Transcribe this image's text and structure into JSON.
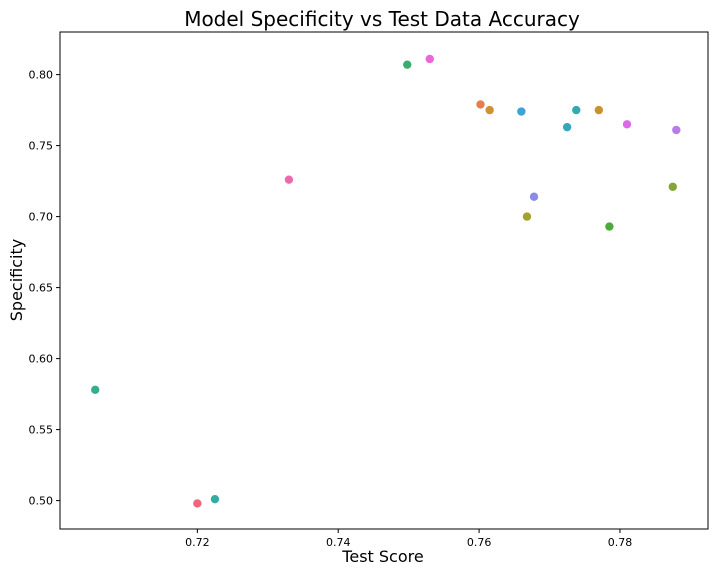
{
  "chart_data": {
    "type": "scatter",
    "title": "Model Specificity vs Test Data Accuracy",
    "xlabel": "Test Score",
    "ylabel": "Specificity",
    "xlim": [
      0.7005,
      0.7925
    ],
    "ylim": [
      0.48,
      0.83
    ],
    "xticks": [
      0.72,
      0.74,
      0.76,
      0.78
    ],
    "xtick_labels": [
      "0.72",
      "0.74",
      "0.76",
      "0.78"
    ],
    "yticks": [
      0.5,
      0.55,
      0.6,
      0.65,
      0.7,
      0.75,
      0.8
    ],
    "ytick_labels": [
      "0.50",
      "0.55",
      "0.60",
      "0.65",
      "0.70",
      "0.75",
      "0.80"
    ],
    "grid": false,
    "legend": "none",
    "points": [
      {
        "x": 0.7055,
        "y": 0.578,
        "color": "#36ad8e"
      },
      {
        "x": 0.72,
        "y": 0.498,
        "color": "#f0657b"
      },
      {
        "x": 0.7225,
        "y": 0.501,
        "color": "#33ada3"
      },
      {
        "x": 0.733,
        "y": 0.726,
        "color": "#ee68ad"
      },
      {
        "x": 0.7498,
        "y": 0.807,
        "color": "#3aad6e"
      },
      {
        "x": 0.753,
        "y": 0.811,
        "color": "#ec65d9"
      },
      {
        "x": 0.7602,
        "y": 0.779,
        "color": "#e67d4f"
      },
      {
        "x": 0.7615,
        "y": 0.775,
        "color": "#cf9131"
      },
      {
        "x": 0.766,
        "y": 0.774,
        "color": "#3aa2dc"
      },
      {
        "x": 0.7668,
        "y": 0.7,
        "color": "#a3a22f"
      },
      {
        "x": 0.7678,
        "y": 0.714,
        "color": "#8b8be9"
      },
      {
        "x": 0.7725,
        "y": 0.763,
        "color": "#35a6bc"
      },
      {
        "x": 0.7738,
        "y": 0.775,
        "color": "#34a9b1"
      },
      {
        "x": 0.777,
        "y": 0.775,
        "color": "#cc8f34"
      },
      {
        "x": 0.7785,
        "y": 0.693,
        "color": "#4daa3a"
      },
      {
        "x": 0.781,
        "y": 0.765,
        "color": "#dc6ae8"
      },
      {
        "x": 0.7875,
        "y": 0.721,
        "color": "#84a637"
      },
      {
        "x": 0.788,
        "y": 0.761,
        "color": "#b87ce9"
      }
    ]
  }
}
